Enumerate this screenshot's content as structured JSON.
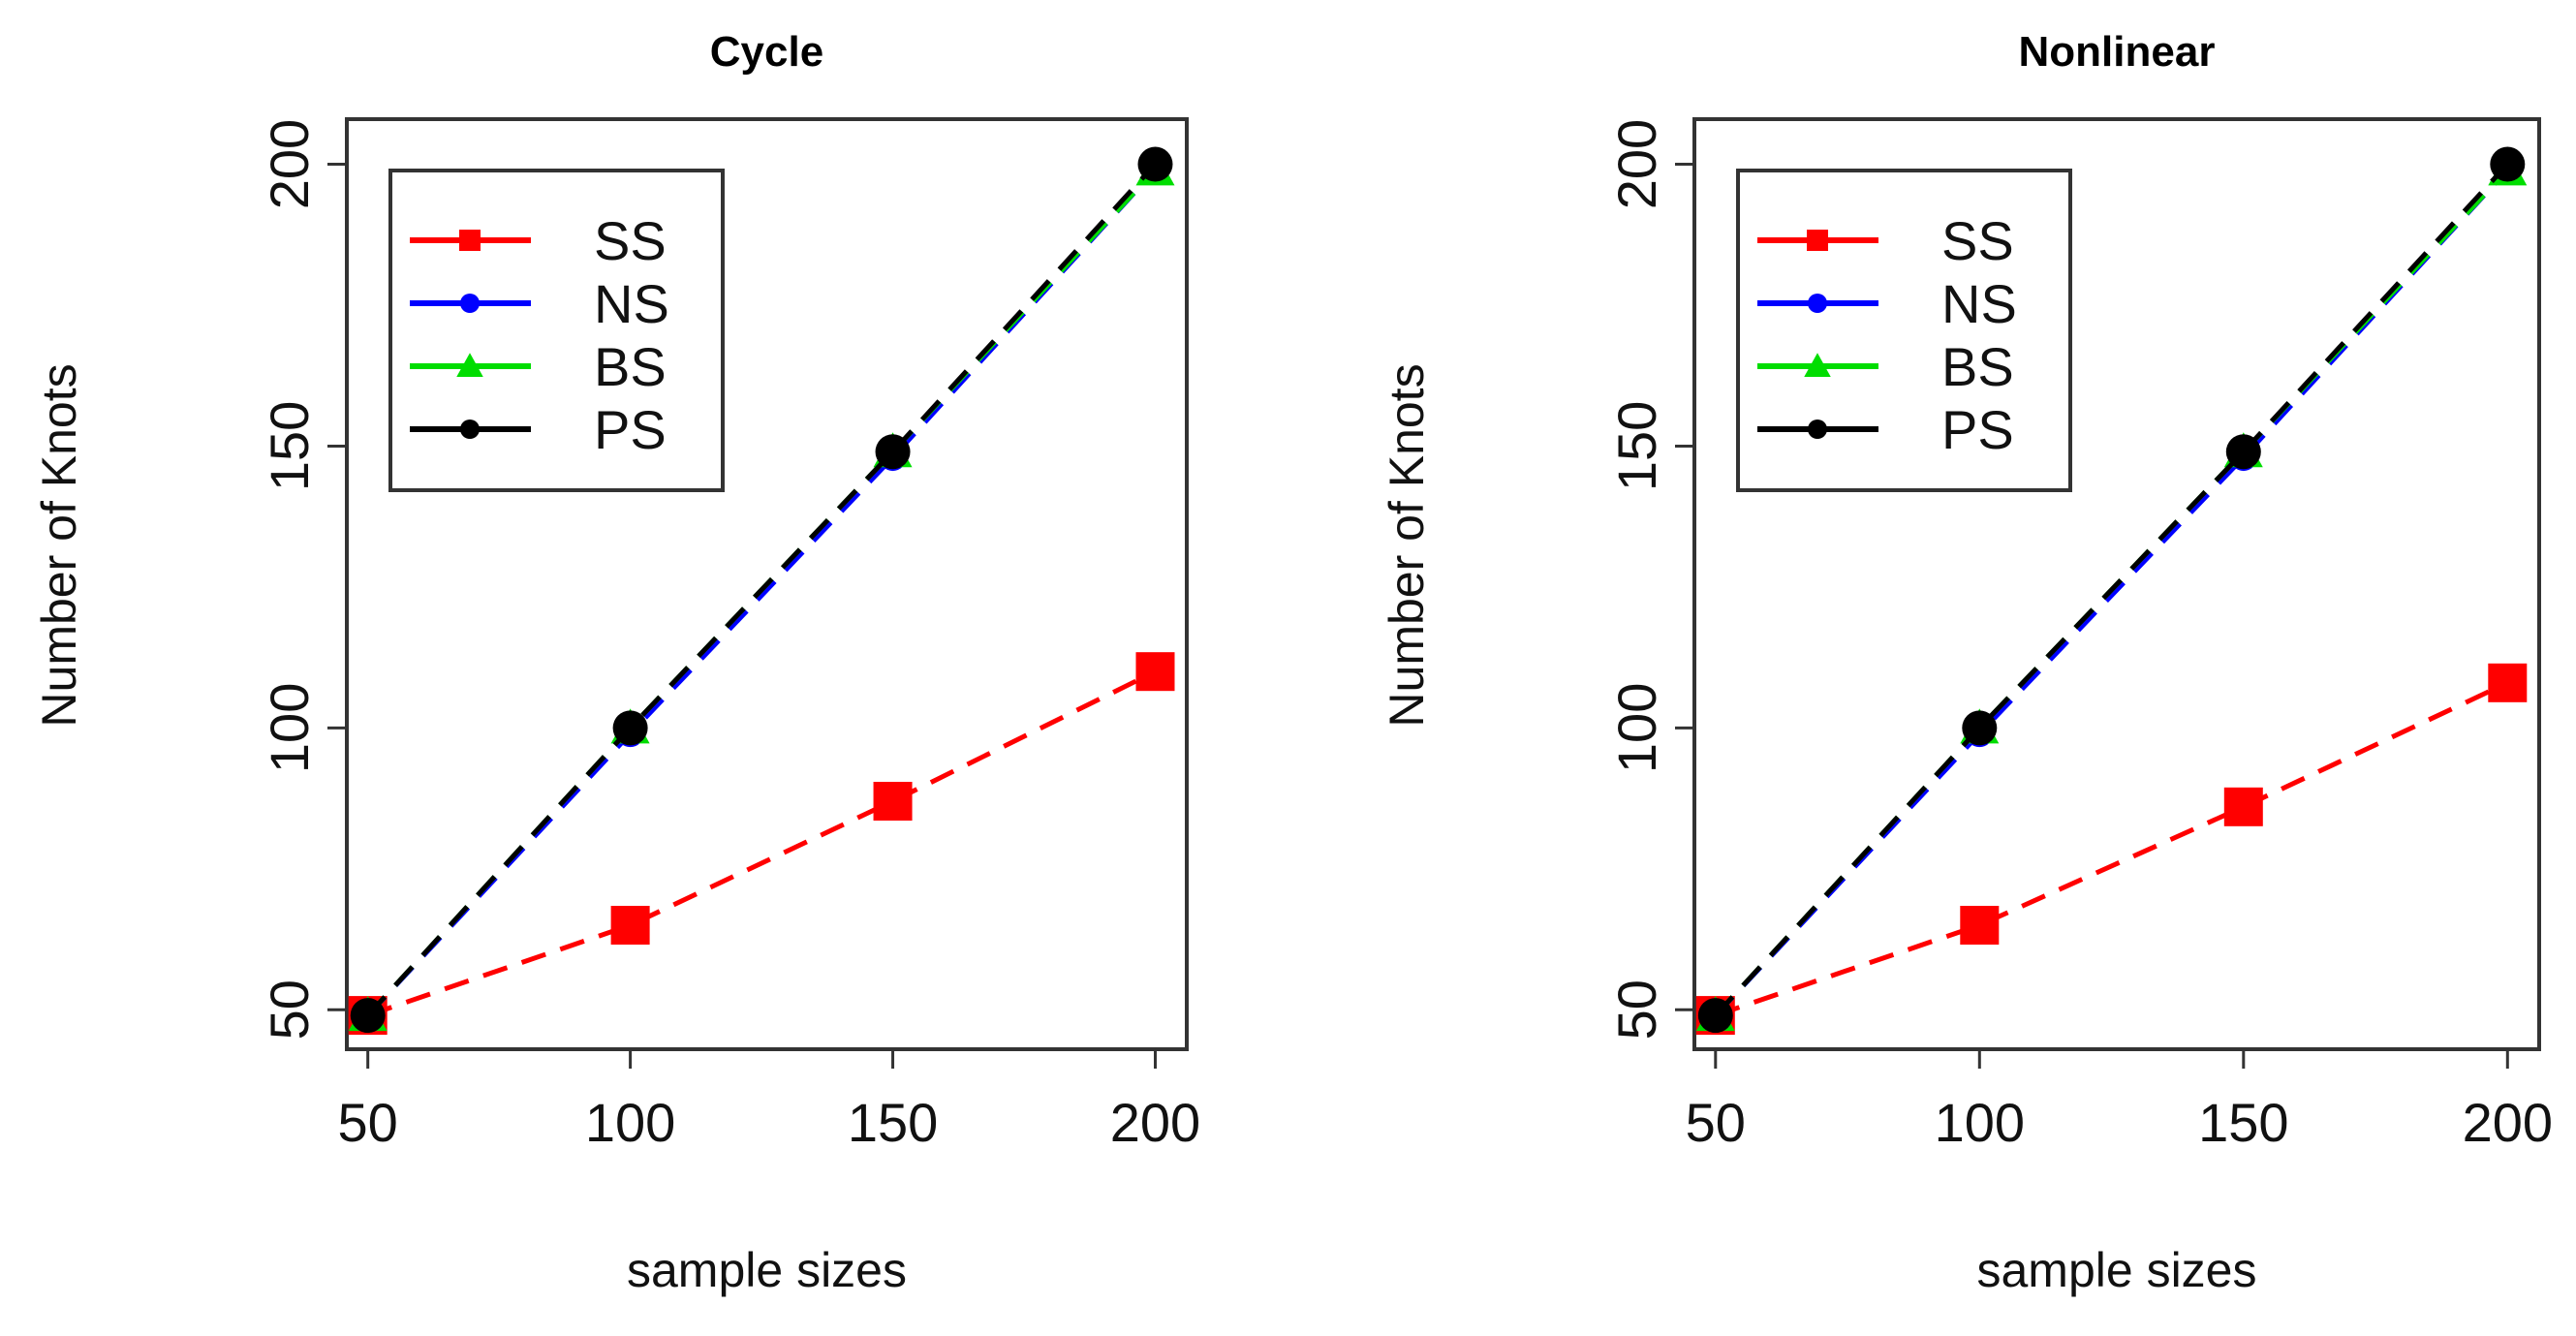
{
  "chart_data": [
    {
      "type": "line",
      "title": "Cycle",
      "xlabel": "sample sizes",
      "ylabel": "Number of Knots",
      "x": [
        50,
        100,
        150,
        200
      ],
      "xticks": [
        "50",
        "100",
        "150",
        "200"
      ],
      "yticks": [
        "50",
        "100",
        "150",
        "200"
      ],
      "xlim": [
        46,
        206
      ],
      "ylim": [
        43,
        208
      ],
      "legend_position": "top-left",
      "series": [
        {
          "name": "SS",
          "color": "#ff0000",
          "marker": "square",
          "linestyle": "dashed",
          "values": [
            49,
            65,
            87,
            110
          ]
        },
        {
          "name": "NS",
          "color": "#0000ff",
          "marker": "circle",
          "linestyle": "dashed",
          "values": [
            49,
            99,
            148,
            199
          ]
        },
        {
          "name": "BS",
          "color": "#00dd00",
          "marker": "triangle",
          "linestyle": "dashed",
          "values": [
            49,
            100,
            149,
            199
          ]
        },
        {
          "name": "PS",
          "color": "#000000",
          "marker": "circle",
          "linestyle": "dashed",
          "values": [
            49,
            100,
            149,
            200
          ]
        }
      ]
    },
    {
      "type": "line",
      "title": "Nonlinear",
      "xlabel": "sample sizes",
      "ylabel": "Number of Knots",
      "x": [
        50,
        100,
        150,
        200
      ],
      "xticks": [
        "50",
        "100",
        "150",
        "200"
      ],
      "yticks": [
        "50",
        "100",
        "150",
        "200"
      ],
      "xlim": [
        46,
        206
      ],
      "ylim": [
        43,
        208
      ],
      "legend_position": "top-left",
      "series": [
        {
          "name": "SS",
          "color": "#ff0000",
          "marker": "square",
          "linestyle": "dashed",
          "values": [
            49,
            65,
            86,
            108
          ]
        },
        {
          "name": "NS",
          "color": "#0000ff",
          "marker": "circle",
          "linestyle": "dashed",
          "values": [
            49,
            99,
            148,
            199
          ]
        },
        {
          "name": "BS",
          "color": "#00dd00",
          "marker": "triangle",
          "linestyle": "dashed",
          "values": [
            49,
            100,
            149,
            199
          ]
        },
        {
          "name": "PS",
          "color": "#000000",
          "marker": "circle",
          "linestyle": "dashed",
          "values": [
            49,
            100,
            149,
            200
          ]
        }
      ]
    }
  ]
}
